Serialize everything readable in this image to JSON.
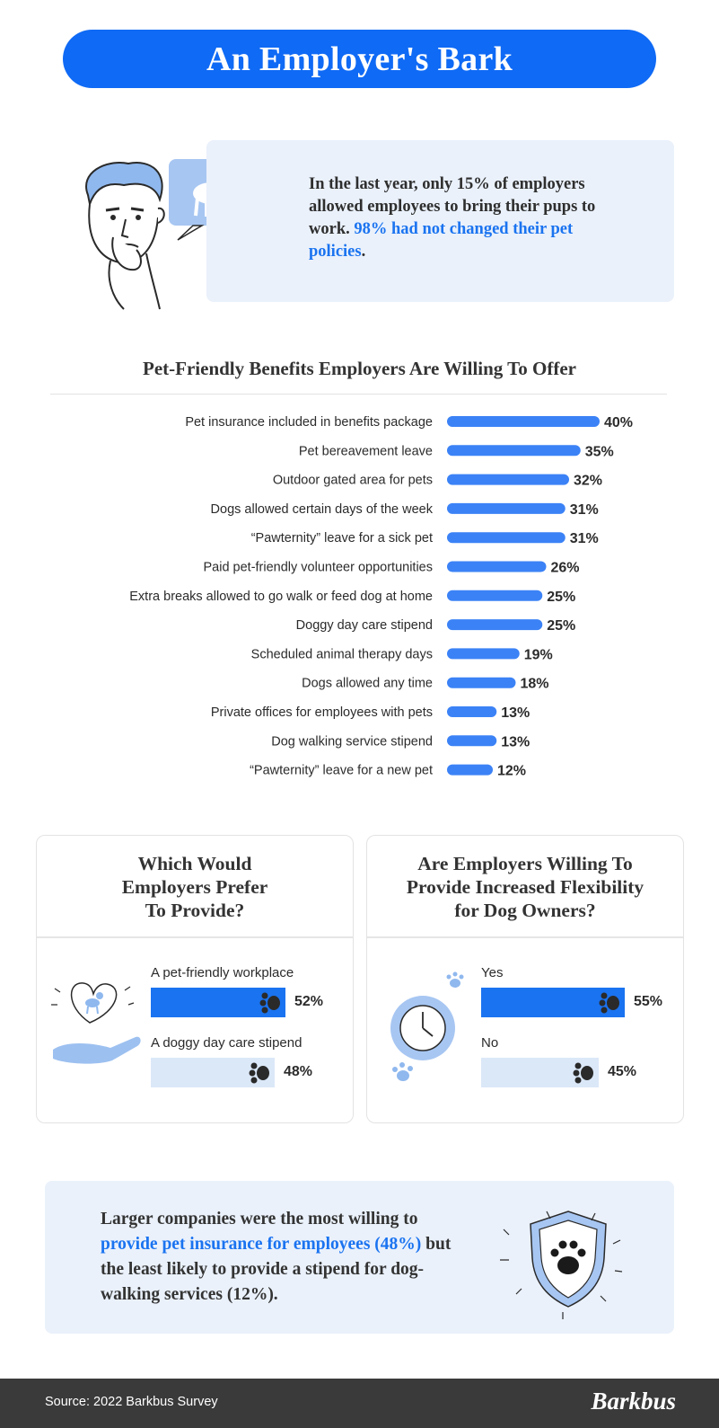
{
  "title": "An Employer's Bark",
  "intro": {
    "text_plain": "In the last year, only 15% of employers allowed employees to bring their pups to work.",
    "text_highlight": "98% had not changed their pet policies",
    "text_end": "."
  },
  "chart_data": {
    "type": "bar",
    "title": "Pet-Friendly Benefits Employers Are Willing To Offer",
    "categories": [
      "Pet insurance included in benefits package",
      "Pet bereavement leave",
      "Outdoor gated area for pets",
      "Dogs allowed certain days of the week",
      "“Pawternity” leave for a sick pet",
      "Paid pet-friendly volunteer opportunities",
      "Extra breaks allowed to go walk or feed dog at home",
      "Doggy day care stipend",
      "Scheduled animal therapy days",
      "Dogs allowed any time",
      "Private offices for employees with pets",
      "Dog walking service stipend",
      "“Pawternity” leave for a new pet"
    ],
    "values": [
      40,
      35,
      32,
      31,
      31,
      26,
      25,
      25,
      19,
      18,
      13,
      13,
      12
    ],
    "value_labels": [
      "40%",
      "35%",
      "32%",
      "31%",
      "31%",
      "26%",
      "25%",
      "25%",
      "19%",
      "18%",
      "13%",
      "13%",
      "12%"
    ],
    "orientation": "horizontal",
    "bar_color": "#3b82f6"
  },
  "poll_left": {
    "title_lines": [
      "Which Would",
      "Employers Prefer",
      "To Provide?"
    ],
    "options": [
      {
        "label": "A pet-friendly workplace",
        "value": 52,
        "value_label": "52%",
        "highlight": true
      },
      {
        "label": "A doggy day care stipend",
        "value": 48,
        "value_label": "48%",
        "highlight": false
      }
    ],
    "icon": "heart-dog-hand-icon"
  },
  "poll_right": {
    "title_lines": [
      "Are Employers Willing To",
      "Provide Increased Flexibility",
      "for Dog Owners?"
    ],
    "options": [
      {
        "label": "Yes",
        "value": 55,
        "value_label": "55%",
        "highlight": true
      },
      {
        "label": "No",
        "value": 45,
        "value_label": "45%",
        "highlight": false
      }
    ],
    "icon": "clock-icon"
  },
  "callout": {
    "text_start": "Larger companies were the most willing to",
    "text_highlight": "provide pet insurance for employees (48%)",
    "text_end": "but the least likely to provide a stipend for dog-walking services (12%).",
    "icon": "shield-paw-icon"
  },
  "footer": {
    "source": "Source: 2022 Barkbus Survey",
    "brand": "Barkbus"
  },
  "colors": {
    "primary_blue": "#0f6af5",
    "bar_blue": "#3b82f6",
    "light_panel": "#eaf1fb",
    "footer_bg": "#3a3a3a"
  }
}
